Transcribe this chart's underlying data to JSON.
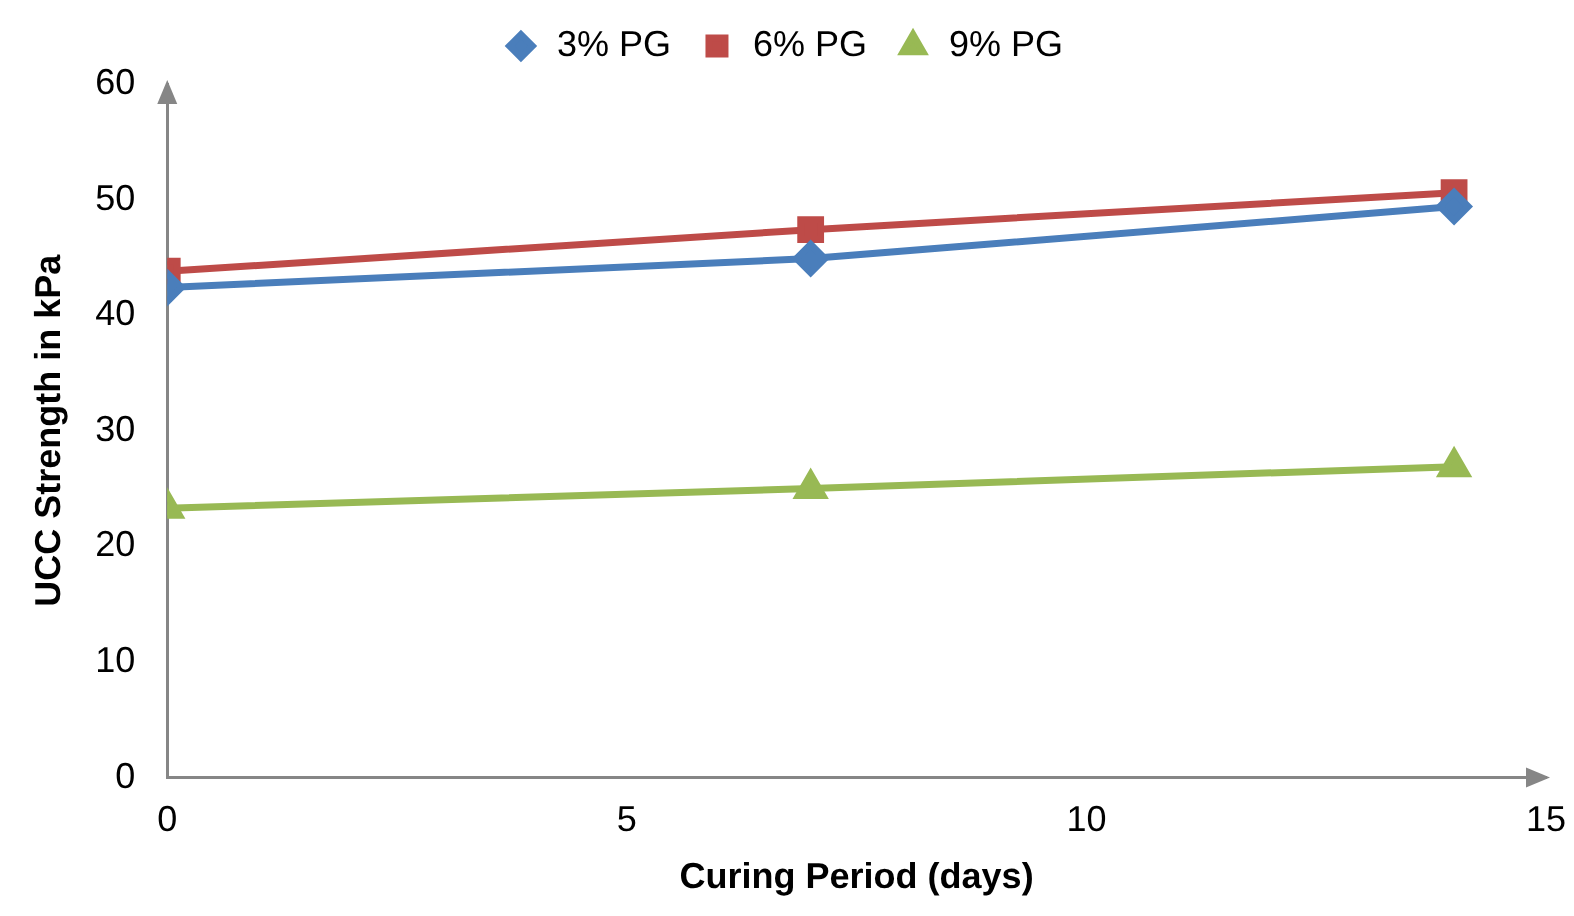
{
  "chart_data": {
    "type": "line",
    "xlabel": "Curing Period (days)",
    "ylabel": "UCC Strength in kPa",
    "x": [
      0,
      7,
      14
    ],
    "series": [
      {
        "name": "3% PG",
        "color": "#4a7ebb",
        "values": [
          42.4,
          44.9,
          49.4
        ],
        "marker": "diamond"
      },
      {
        "name": "6% PG",
        "color": "#be4b48",
        "values": [
          43.8,
          47.4,
          50.6
        ],
        "marker": "square"
      },
      {
        "name": "9% PG",
        "color": "#98b954",
        "values": [
          23.3,
          25.0,
          26.9
        ],
        "marker": "triangle"
      }
    ],
    "xlim": [
      0,
      15
    ],
    "xticks": [
      0,
      5,
      10,
      15
    ],
    "ylim": [
      0,
      60
    ],
    "yticks": [
      0,
      10,
      20,
      30,
      40,
      50,
      60
    ],
    "grid": false,
    "legend": "top",
    "line_style": "solid"
  }
}
